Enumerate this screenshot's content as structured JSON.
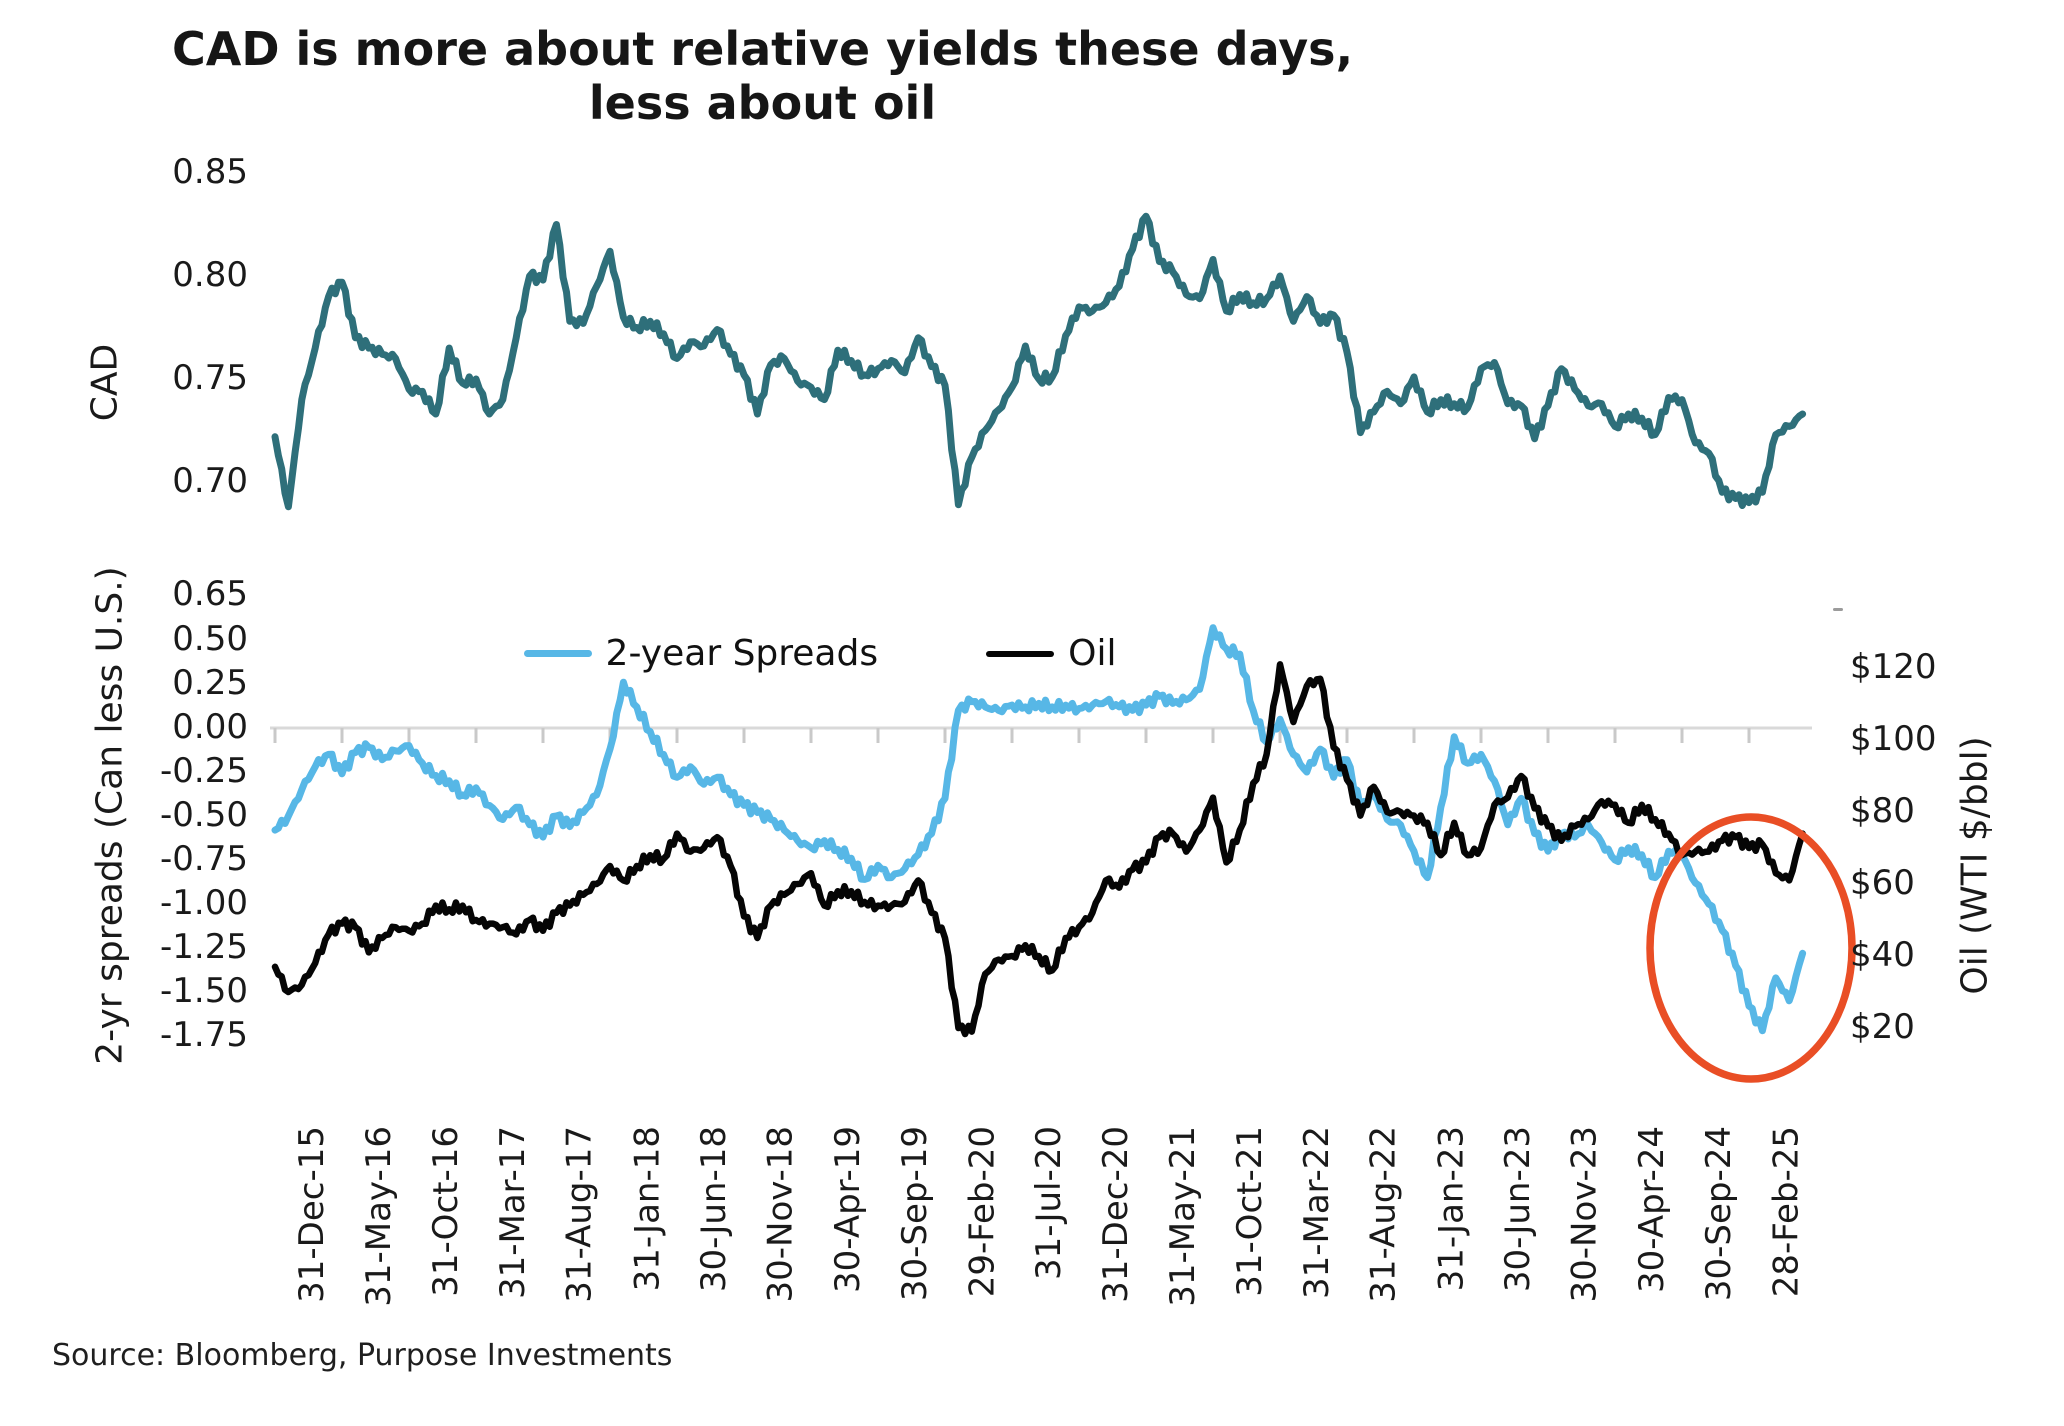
{
  "title": "CAD is more about relative yields these days, less about oil",
  "source": {
    "text": "Source: Bloomberg, Purpose Investments"
  },
  "colors": {
    "cad_line": "#2E6F7A",
    "spread_line": "#57B7E6",
    "oil_line": "#050505",
    "highlight_ellipse": "#E94E25",
    "zero_gridline": "#D9D9D9",
    "axis_tick": "#C9C9C9"
  },
  "chart_data": {
    "type": "line",
    "title": "CAD is more about relative yields these days, less about oil",
    "x": {
      "frequency": "monthly",
      "start": "31-Dec-15",
      "end": "Jun-25",
      "tick_labels": [
        "31-Dec-15",
        "31-May-16",
        "31-Oct-16",
        "31-Mar-17",
        "31-Aug-17",
        "31-Jan-18",
        "30-Jun-18",
        "30-Nov-18",
        "30-Apr-19",
        "30-Sep-19",
        "29-Feb-20",
        "31-Jul-20",
        "31-Dec-20",
        "31-May-21",
        "31-Oct-21",
        "31-Mar-22",
        "31-Aug-22",
        "31-Jan-23",
        "30-Jun-23",
        "30-Nov-23",
        "30-Apr-24",
        "30-Sep-24",
        "28-Feb-25"
      ]
    },
    "panels": [
      {
        "id": "cad",
        "ylabel": "CAD",
        "ytick_labels": [
          "0.85",
          "0.80",
          "0.75",
          "0.70"
        ],
        "ylim": [
          0.65,
          0.85
        ],
        "grid": false,
        "series": [
          {
            "name": "CAD",
            "color": "#2E6F7A",
            "values": [
              0.722,
              0.688,
              0.74,
              0.765,
              0.79,
              0.797,
              0.77,
              0.765,
              0.762,
              0.76,
              0.745,
              0.744,
              0.733,
              0.765,
              0.748,
              0.75,
              0.733,
              0.74,
              0.77,
              0.8,
              0.798,
              0.825,
              0.778,
              0.777,
              0.795,
              0.812,
              0.78,
              0.775,
              0.778,
              0.772,
              0.76,
              0.768,
              0.766,
              0.774,
              0.762,
              0.752,
              0.733,
              0.757,
              0.76,
              0.749,
              0.746,
              0.74,
              0.764,
              0.759,
              0.752,
              0.755,
              0.759,
              0.753,
              0.77,
              0.756,
              0.747,
              0.689,
              0.712,
              0.725,
              0.735,
              0.746,
              0.766,
              0.75,
              0.751,
              0.771,
              0.785,
              0.783,
              0.787,
              0.795,
              0.813,
              0.829,
              0.807,
              0.802,
              0.791,
              0.789,
              0.808,
              0.783,
              0.791,
              0.787,
              0.789,
              0.8,
              0.778,
              0.79,
              0.777,
              0.781,
              0.763,
              0.724,
              0.734,
              0.744,
              0.738,
              0.751,
              0.734,
              0.74,
              0.738,
              0.736,
              0.755,
              0.758,
              0.738,
              0.737,
              0.721,
              0.737,
              0.755,
              0.745,
              0.737,
              0.738,
              0.727,
              0.733,
              0.731,
              0.723,
              0.741,
              0.74,
              0.719,
              0.714,
              0.695,
              0.692,
              0.69,
              0.695,
              0.723,
              0.727,
              0.733
            ]
          }
        ]
      },
      {
        "id": "spreads_oil",
        "ylabel_left": "2-yr spreads (Can less U.S.)",
        "ylabel_right": "Oil (WTI $/bbl)",
        "ytick_labels_left": [
          "0.65",
          "0.50",
          "0.25",
          "0.00",
          "-0.25",
          "-0.50",
          "-0.75",
          "-1.00",
          "-1.25",
          "-1.50",
          "-1.75"
        ],
        "ytick_labels_right": [
          "$120",
          "$100",
          "$80",
          "$60",
          "$40",
          "$20"
        ],
        "ylim_left": [
          -1.75,
          0.65
        ],
        "ylim_right": [
          20,
          120
        ],
        "zero_gridline": true,
        "legend_position": "top-center",
        "series": [
          {
            "name": "2-year Spreads",
            "axis": "left",
            "color": "#57B7E6",
            "values": [
              -0.58,
              -0.5,
              -0.35,
              -0.22,
              -0.15,
              -0.26,
              -0.14,
              -0.11,
              -0.18,
              -0.13,
              -0.1,
              -0.2,
              -0.27,
              -0.3,
              -0.38,
              -0.34,
              -0.44,
              -0.52,
              -0.45,
              -0.55,
              -0.62,
              -0.5,
              -0.56,
              -0.48,
              -0.38,
              -0.12,
              0.26,
              0.12,
              -0.02,
              -0.15,
              -0.28,
              -0.22,
              -0.32,
              -0.28,
              -0.38,
              -0.44,
              -0.48,
              -0.52,
              -0.58,
              -0.64,
              -0.68,
              -0.64,
              -0.69,
              -0.74,
              -0.86,
              -0.78,
              -0.85,
              -0.8,
              -0.72,
              -0.6,
              -0.4,
              0.1,
              0.15,
              0.12,
              0.1,
              0.13,
              0.12,
              0.14,
              0.12,
              0.13,
              0.11,
              0.13,
              0.15,
              0.12,
              0.1,
              0.13,
              0.18,
              0.14,
              0.16,
              0.22,
              0.57,
              0.45,
              0.42,
              0.1,
              -0.08,
              0.05,
              -0.15,
              -0.25,
              -0.12,
              -0.28,
              -0.18,
              -0.45,
              -0.38,
              -0.52,
              -0.55,
              -0.7,
              -0.85,
              -0.45,
              -0.05,
              -0.2,
              -0.15,
              -0.3,
              -0.55,
              -0.4,
              -0.6,
              -0.7,
              -0.6,
              -0.62,
              -0.55,
              -0.65,
              -0.75,
              -0.68,
              -0.72,
              -0.85,
              -0.7,
              -0.72,
              -0.88,
              -1.0,
              -1.15,
              -1.35,
              -1.58,
              -1.72,
              -1.42,
              -1.55,
              -1.28
            ]
          },
          {
            "name": "Oil",
            "axis": "right",
            "color": "#050505",
            "values": [
              37,
              30,
              32,
              38,
              46,
              49,
              48,
              41,
              45,
              48,
              47,
              49,
              54,
              53,
              54,
              50,
              49,
              48,
              46,
              50,
              47,
              52,
              54,
              57,
              60,
              65,
              61,
              65,
              68,
              67,
              74,
              69,
              70,
              73,
              65,
              51,
              45,
              54,
              57,
              60,
              63,
              54,
              58,
              58,
              55,
              54,
              54,
              55,
              61,
              52,
              45,
              20,
              19,
              35,
              39,
              40,
              43,
              40,
              36,
              45,
              48,
              52,
              61,
              59,
              64,
              66,
              73,
              74,
              69,
              75,
              84,
              66,
              75,
              88,
              96,
              121,
              105,
              115,
              117,
              98,
              89,
              79,
              87,
              80,
              80,
              79,
              77,
              68,
              77,
              68,
              70,
              82,
              84,
              90,
              81,
              76,
              72,
              76,
              78,
              83,
              82,
              77,
              82,
              78,
              74,
              68,
              69,
              69,
              72,
              73,
              70,
              71,
              63,
              61,
              74
            ]
          }
        ],
        "annotations": [
          {
            "type": "ellipse",
            "color": "#E94E25",
            "highlights": "late-2024 to 2025 divergence of spreads vs oil"
          }
        ]
      }
    ]
  }
}
